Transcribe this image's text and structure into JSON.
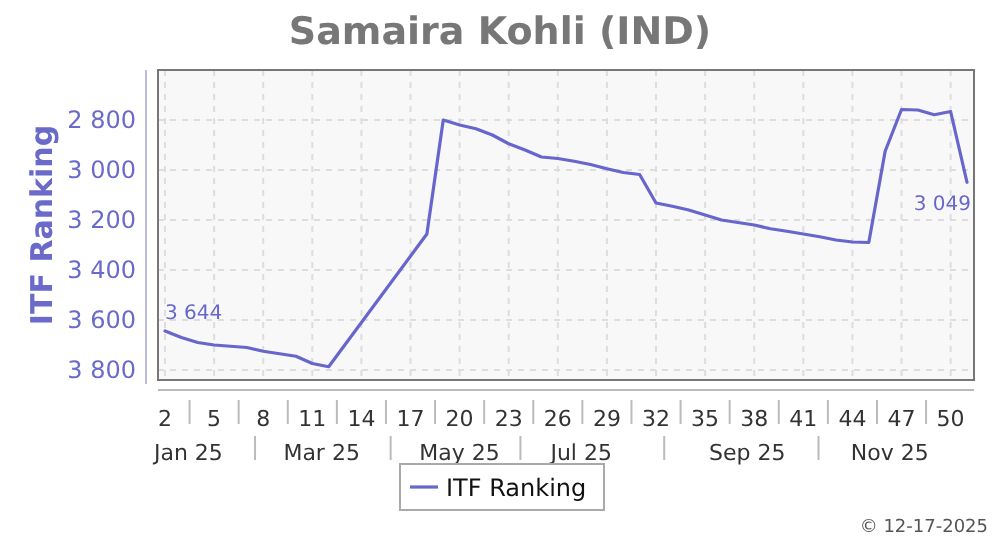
{
  "chart_data": {
    "type": "line",
    "title": "Samaira Kohli (IND)",
    "ylabel": "ITF Ranking",
    "x": [
      "2025-01-06",
      "2025-01-13",
      "2025-01-20",
      "2025-01-27",
      "2025-02-03",
      "2025-02-10",
      "2025-02-17",
      "2025-02-24",
      "2025-03-03",
      "2025-03-10",
      "2025-03-17",
      "2025-04-28",
      "2025-05-05",
      "2025-05-12",
      "2025-05-19",
      "2025-05-26",
      "2025-06-02",
      "2025-06-09",
      "2025-06-16",
      "2025-06-23",
      "2025-06-30",
      "2025-07-07",
      "2025-07-14",
      "2025-07-21",
      "2025-07-28",
      "2025-08-04",
      "2025-08-11",
      "2025-08-18",
      "2025-08-25",
      "2025-09-01",
      "2025-09-08",
      "2025-09-15",
      "2025-09-22",
      "2025-09-29",
      "2025-10-06",
      "2025-10-13",
      "2025-10-20",
      "2025-10-27",
      "2025-11-03",
      "2025-11-10",
      "2025-11-17",
      "2025-11-24",
      "2025-12-01",
      "2025-12-08",
      "2025-12-15"
    ],
    "series": [
      {
        "name": "ITF Ranking",
        "color": "#6666cc",
        "values": [
          3644,
          3670,
          3690,
          3700,
          3705,
          3710,
          3725,
          3735,
          3745,
          3774,
          3787,
          3256,
          2800,
          2820,
          2835,
          2860,
          2895,
          2920,
          2948,
          2954,
          2965,
          2978,
          2995,
          3010,
          3018,
          3132,
          3145,
          3160,
          3180,
          3200,
          3210,
          3220,
          3235,
          3245,
          3256,
          3267,
          3280,
          3288,
          3290,
          2925,
          2758,
          2760,
          2779,
          2766,
          3049
        ],
        "value_labels": [
          "3 644",
          null,
          null,
          null,
          null,
          null,
          null,
          null,
          null,
          null,
          null,
          null,
          null,
          null,
          null,
          null,
          null,
          null,
          null,
          null,
          null,
          null,
          null,
          null,
          null,
          null,
          null,
          null,
          null,
          null,
          null,
          null,
          null,
          null,
          null,
          null,
          null,
          null,
          null,
          null,
          null,
          null,
          null,
          null,
          "3 049"
        ]
      }
    ],
    "xlim": [
      "2025-01-03",
      "2025-12-18"
    ],
    "xticks": [
      {
        "value": "2025-01-06",
        "label": "2"
      },
      {
        "value": "2025-01-27",
        "label": "5"
      },
      {
        "value": "2025-02-17",
        "label": "8"
      },
      {
        "value": "2025-03-10",
        "label": "11"
      },
      {
        "value": "2025-03-31",
        "label": "14"
      },
      {
        "value": "2025-04-21",
        "label": "17"
      },
      {
        "value": "2025-05-12",
        "label": "20"
      },
      {
        "value": "2025-06-02",
        "label": "23"
      },
      {
        "value": "2025-06-23",
        "label": "26"
      },
      {
        "value": "2025-07-14",
        "label": "29"
      },
      {
        "value": "2025-08-04",
        "label": "32"
      },
      {
        "value": "2025-08-25",
        "label": "35"
      },
      {
        "value": "2025-09-15",
        "label": "38"
      },
      {
        "value": "2025-10-06",
        "label": "41"
      },
      {
        "value": "2025-10-27",
        "label": "44"
      },
      {
        "value": "2025-11-17",
        "label": "47"
      },
      {
        "value": "2025-12-08",
        "label": "50"
      }
    ],
    "x2lim": [
      "2025-01-03",
      "2025-12-18"
    ],
    "x2ticks": [
      {
        "value": "2025-01-16",
        "label": "Jan 25"
      },
      {
        "value": "2025-03-14",
        "label": "Mar 25"
      },
      {
        "value": "2025-05-12",
        "label": "May 25"
      },
      {
        "value": "2025-07-03",
        "label": "Jul 25"
      },
      {
        "value": "2025-09-12",
        "label": "Sep 25"
      },
      {
        "value": "2025-11-12",
        "label": "Nov 25"
      }
    ],
    "ylim": [
      3840,
      2600
    ],
    "yticks": [
      {
        "value": 2800,
        "label": "2 800"
      },
      {
        "value": 3000,
        "label": "3 000"
      },
      {
        "value": 3200,
        "label": "3 200"
      },
      {
        "value": 3400,
        "label": "3 400"
      },
      {
        "value": 3600,
        "label": "3 600"
      },
      {
        "value": 3800,
        "label": "3 800"
      }
    ],
    "grid": true,
    "legend": "bottom",
    "marker": "none",
    "line_style": "solid",
    "annotations": [
      "© 12-17-2025"
    ]
  }
}
